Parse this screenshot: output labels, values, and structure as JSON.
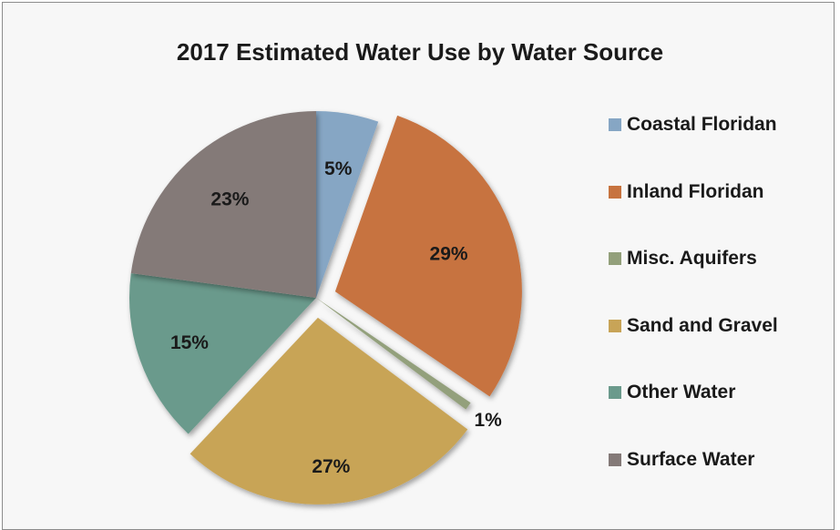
{
  "chart_data": {
    "type": "pie",
    "title": "2017 Estimated Water Use by Water Source",
    "categories": [
      "Coastal Floridan",
      "Inland Floridan",
      "Misc. Aquifers",
      "Sand and Gravel",
      "Other Water",
      "Surface Water"
    ],
    "values": [
      5.4,
      29.1,
      0.7,
      26.8,
      15.1,
      22.9
    ],
    "labels": [
      "5%",
      "29%",
      "1%",
      "27%",
      "15%",
      "23%"
    ],
    "colors": [
      "#86a6c4",
      "#c7733f",
      "#93a07b",
      "#c8a457",
      "#6b9a8c",
      "#847a78"
    ],
    "exploded": [
      false,
      true,
      false,
      true,
      false,
      false
    ],
    "legend_position": "right"
  }
}
